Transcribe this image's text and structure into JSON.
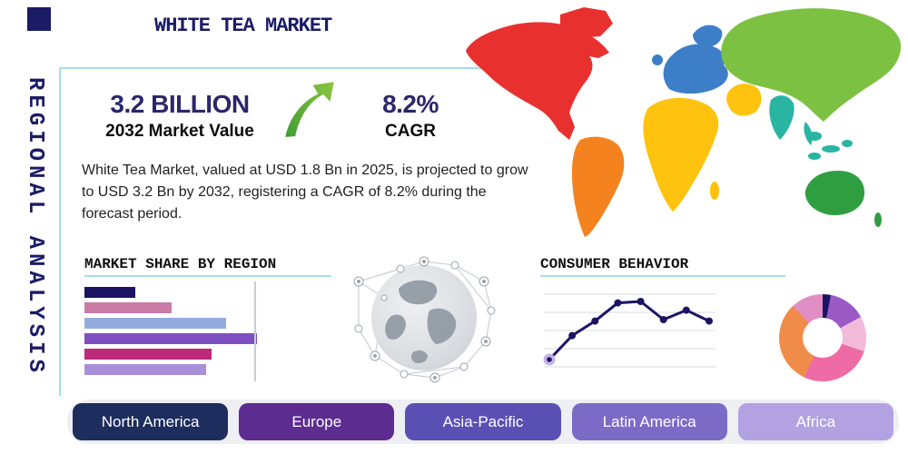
{
  "header": {
    "title": "WHITE TEA MARKET",
    "side_label": "REGIONAL ANALYSIS"
  },
  "highlights": {
    "market_value": "3.2 BILLION",
    "market_value_caption": "2032 Market Value",
    "cagr": "8.2%",
    "cagr_caption": "CAGR",
    "description": "White Tea Market, valued at USD 1.8 Bn in 2025, is projected to grow to USD 3.2 Bn by 2032, registering a CAGR of 8.2% during the forecast period."
  },
  "sections": {
    "market_share_title": "MARKET SHARE BY REGION",
    "consumer_behavior_title": "CONSUMER BEHAVIOR"
  },
  "regions": [
    {
      "label": "North America",
      "color": "#1c2d5e"
    },
    {
      "label": "Europe",
      "color": "#5c2c90"
    },
    {
      "label": "Asia-Pacific",
      "color": "#5a50b4"
    },
    {
      "label": "Latin America",
      "color": "#7b6bc7"
    },
    {
      "label": "Africa",
      "color": "#b3a2e2"
    }
  ],
  "map": {
    "regions": [
      {
        "name": "greenland",
        "color": "#e8312f"
      },
      {
        "name": "north-america",
        "color": "#e8312f"
      },
      {
        "name": "south-america",
        "color": "#f4821e"
      },
      {
        "name": "europe",
        "color": "#3d7ec9"
      },
      {
        "name": "scandinavia",
        "color": "#3d7ec9"
      },
      {
        "name": "united-kingdom",
        "color": "#3d7ec9"
      },
      {
        "name": "africa",
        "color": "#ffc20e"
      },
      {
        "name": "madagascar",
        "color": "#ffc20e"
      },
      {
        "name": "middle-east",
        "color": "#ffc20e"
      },
      {
        "name": "asia",
        "color": "#7cc142"
      },
      {
        "name": "india",
        "color": "#2ab5a3"
      },
      {
        "name": "southeast-asia",
        "color": "#2ab5a3"
      },
      {
        "name": "japan",
        "color": "#7cc142"
      },
      {
        "name": "australia",
        "color": "#2f9e41"
      },
      {
        "name": "new-zealand",
        "color": "#2f9e41"
      }
    ]
  },
  "chart_data": [
    {
      "type": "bar",
      "title": "MARKET SHARE BY REGION",
      "orientation": "horizontal",
      "categories": null,
      "values": [
        28,
        48,
        78,
        95,
        70,
        67
      ],
      "unit": "percent of axis width (bars unlabeled, estimated)",
      "colors": [
        "#1b1464",
        "#c87ca6",
        "#93abdf",
        "#7d4fc0",
        "#bd2a7b",
        "#a98fd9"
      ],
      "grid": "one vertical gridline near right edge"
    },
    {
      "type": "line",
      "title": "CONSUMER BEHAVIOR",
      "x": [
        1,
        2,
        3,
        4,
        5,
        6,
        7,
        8
      ],
      "values": [
        10,
        43,
        63,
        88,
        90,
        65,
        78,
        63
      ],
      "ylim": [
        0,
        100
      ],
      "line_color": "#1b1464",
      "marker_color": "#1b1464",
      "first_marker_halo_color": "#c7b2e8",
      "grid": "horizontal gridlines only, axes unlabeled (values estimated)"
    },
    {
      "type": "pie",
      "title": "",
      "donut": true,
      "start": "top, clockwise",
      "segments": [
        {
          "color": "#1b1464",
          "value": 3
        },
        {
          "color": "#9b59c4",
          "value": 14
        },
        {
          "color": "#f3bada",
          "value": 13
        },
        {
          "color": "#ee6ba6",
          "value": 27
        },
        {
          "color": "#f08c4a",
          "value": 31
        },
        {
          "color": "#e18ec4",
          "value": 12
        }
      ]
    }
  ]
}
